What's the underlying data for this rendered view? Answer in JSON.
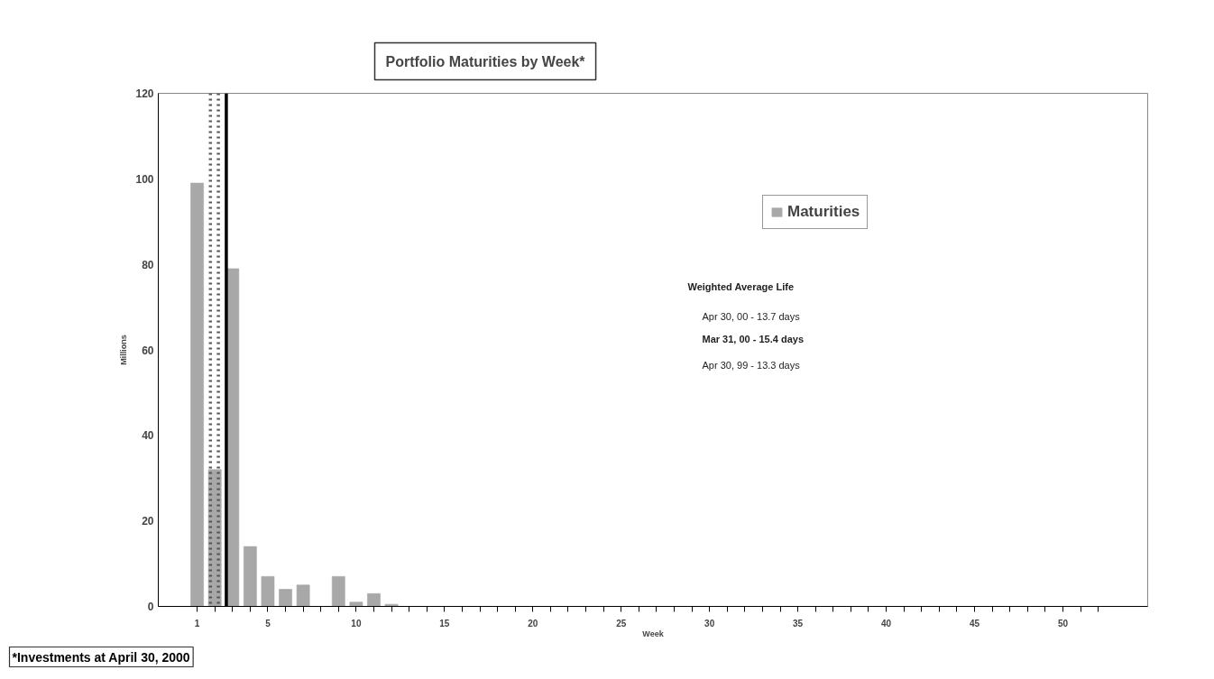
{
  "chart_data": {
    "type": "bar",
    "title": "Portfolio Maturities by Week*",
    "xlabel": "Week",
    "ylabel": "Millions",
    "x": [
      1,
      2,
      3,
      4,
      5,
      6,
      7,
      8,
      9,
      10,
      11,
      12,
      13,
      14,
      15,
      16,
      17,
      18,
      19,
      20,
      21,
      22,
      23,
      24,
      25,
      26,
      27,
      28,
      29,
      30,
      31,
      32,
      33,
      34,
      35,
      36,
      37,
      38,
      39,
      40,
      41,
      42,
      43,
      44,
      45,
      46,
      47,
      48,
      49,
      50,
      51,
      52
    ],
    "series": [
      {
        "name": "Maturities",
        "color": "#a8a8a8",
        "values": [
          99,
          32,
          79,
          14,
          7,
          4,
          5,
          0,
          7,
          1,
          3,
          0.5,
          0,
          0,
          0,
          0,
          0,
          0,
          0,
          0,
          0,
          0,
          0,
          0,
          0,
          0,
          0,
          0,
          0,
          0,
          0,
          0,
          0,
          0,
          0,
          0,
          0,
          0,
          0,
          0,
          0,
          0,
          0,
          0,
          0,
          0,
          0,
          0,
          0,
          0,
          0,
          0
        ]
      }
    ],
    "ref_lines": [
      {
        "axis": "x",
        "value": 1.75,
        "color": "#555555",
        "line_style": "dotted"
      },
      {
        "axis": "x",
        "value": 2.2,
        "color": "#555555",
        "line_style": "dotted"
      },
      {
        "axis": "x",
        "value": 2.65,
        "color": "#000000",
        "line_style": "solid"
      }
    ],
    "xlim": [
      -1.2,
      54.8
    ],
    "ylim": [
      0,
      120
    ],
    "xticks": [
      1,
      {
        "value": 2,
        "label": null
      },
      {
        "value": 3,
        "label": null
      },
      {
        "value": 4,
        "label": null
      },
      5,
      {
        "value": 6,
        "label": null
      },
      {
        "value": 7,
        "label": null
      },
      {
        "value": 8,
        "label": null
      },
      {
        "value": 9,
        "label": null
      },
      10,
      {
        "value": 11,
        "label": null
      },
      {
        "value": 12,
        "label": null
      },
      {
        "value": 13,
        "label": null
      },
      {
        "value": 14,
        "label": null
      },
      15,
      {
        "value": 16,
        "label": null
      },
      {
        "value": 17,
        "label": null
      },
      {
        "value": 18,
        "label": null
      },
      {
        "value": 19,
        "label": null
      },
      20,
      {
        "value": 21,
        "label": null
      },
      {
        "value": 22,
        "label": null
      },
      {
        "value": 23,
        "label": null
      },
      {
        "value": 24,
        "label": null
      },
      25,
      {
        "value": 26,
        "label": null
      },
      {
        "value": 27,
        "label": null
      },
      {
        "value": 28,
        "label": null
      },
      {
        "value": 29,
        "label": null
      },
      30,
      {
        "value": 31,
        "label": null
      },
      {
        "value": 32,
        "label": null
      },
      {
        "value": 33,
        "label": null
      },
      {
        "value": 34,
        "label": null
      },
      35,
      {
        "value": 36,
        "label": null
      },
      {
        "value": 37,
        "label": null
      },
      {
        "value": 38,
        "label": null
      },
      {
        "value": 39,
        "label": null
      },
      40,
      {
        "value": 41,
        "label": null
      },
      {
        "value": 42,
        "label": null
      },
      {
        "value": 43,
        "label": null
      },
      {
        "value": 44,
        "label": null
      },
      45,
      {
        "value": 46,
        "label": null
      },
      {
        "value": 47,
        "label": null
      },
      {
        "value": 48,
        "label": null
      },
      {
        "value": 49,
        "label": null
      },
      50,
      {
        "value": 51,
        "label": null
      },
      {
        "value": 52,
        "label": null
      }
    ],
    "yticks": [
      0,
      20,
      40,
      60,
      80,
      100,
      120
    ],
    "grid": false,
    "legend": "top right",
    "annotations": [
      "*Investments at April 30, 2000",
      "Weighted Average Life",
      "Apr 30, 00 - 13.7 days",
      "Mar 31, 00 - 15.4 days",
      "Apr 30, 99 - 13.3 days"
    ]
  }
}
